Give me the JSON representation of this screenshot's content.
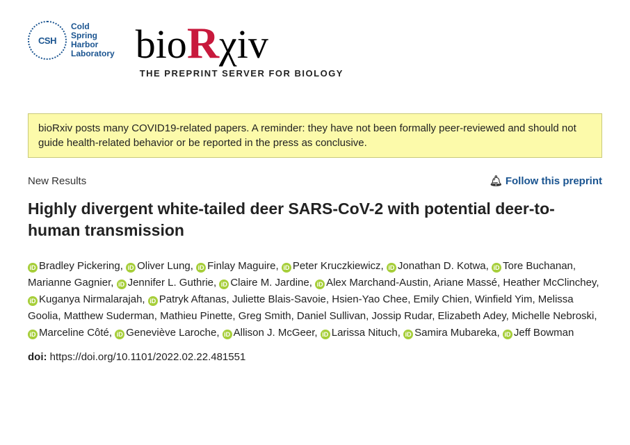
{
  "header": {
    "csh_abbr": "CSH",
    "csh_line1": "Cold",
    "csh_line2": "Spring",
    "csh_line3": "Harbor",
    "csh_line4": "Laboratory",
    "biorxiv_pre": "bio",
    "biorxiv_r": "R",
    "biorxiv_post": "χiv",
    "tagline": "THE PREPRINT SERVER FOR BIOLOGY"
  },
  "notice": "bioRxiv posts many COVID19-related papers. A reminder: they have not been formally peer-reviewed and should not guide health-related behavior or be reported in the press as conclusive.",
  "meta": {
    "category": "New Results",
    "follow_label": "Follow this preprint"
  },
  "title": "Highly divergent white-tailed deer SARS-CoV-2 with potential deer-to-human transmission",
  "authors": [
    {
      "name": "Bradley Pickering",
      "orcid": true
    },
    {
      "name": "Oliver Lung",
      "orcid": true
    },
    {
      "name": "Finlay Maguire",
      "orcid": true
    },
    {
      "name": "Peter Kruczkiewicz",
      "orcid": true
    },
    {
      "name": "Jonathan D. Kotwa",
      "orcid": true
    },
    {
      "name": "Tore Buchanan",
      "orcid": true
    },
    {
      "name": "Marianne Gagnier",
      "orcid": false
    },
    {
      "name": "Jennifer L. Guthrie",
      "orcid": true
    },
    {
      "name": "Claire M. Jardine",
      "orcid": true
    },
    {
      "name": "Alex Marchand-Austin",
      "orcid": true
    },
    {
      "name": "Ariane Massé",
      "orcid": false
    },
    {
      "name": "Heather McClinchey",
      "orcid": false
    },
    {
      "name": "Kuganya Nirmalarajah",
      "orcid": true
    },
    {
      "name": "Patryk Aftanas",
      "orcid": true
    },
    {
      "name": "Juliette Blais-Savoie",
      "orcid": false
    },
    {
      "name": "Hsien-Yao Chee",
      "orcid": false
    },
    {
      "name": "Emily Chien",
      "orcid": false
    },
    {
      "name": "Winfield Yim",
      "orcid": false
    },
    {
      "name": "Melissa Goolia",
      "orcid": false
    },
    {
      "name": "Matthew Suderman",
      "orcid": false
    },
    {
      "name": "Mathieu Pinette",
      "orcid": false
    },
    {
      "name": "Greg Smith",
      "orcid": false
    },
    {
      "name": "Daniel Sullivan",
      "orcid": false
    },
    {
      "name": "Jossip Rudar",
      "orcid": false
    },
    {
      "name": "Elizabeth Adey",
      "orcid": false
    },
    {
      "name": "Michelle Nebroski",
      "orcid": false
    },
    {
      "name": "Marceline Côté",
      "orcid": true
    },
    {
      "name": "Geneviève Laroche",
      "orcid": true
    },
    {
      "name": "Allison J. McGeer",
      "orcid": true
    },
    {
      "name": "Larissa Nituch",
      "orcid": true
    },
    {
      "name": "Samira Mubareka",
      "orcid": true
    },
    {
      "name": "Jeff Bowman",
      "orcid": true
    }
  ],
  "doi": {
    "label": "doi:",
    "value": "https://doi.org/10.1101/2022.02.22.481551"
  },
  "colors": {
    "notice_bg": "#fcfaaa",
    "notice_border": "#c9c97a",
    "link_color": "#1a5490",
    "orcid_green": "#a6ce39",
    "biorxiv_red": "#c8193c"
  }
}
